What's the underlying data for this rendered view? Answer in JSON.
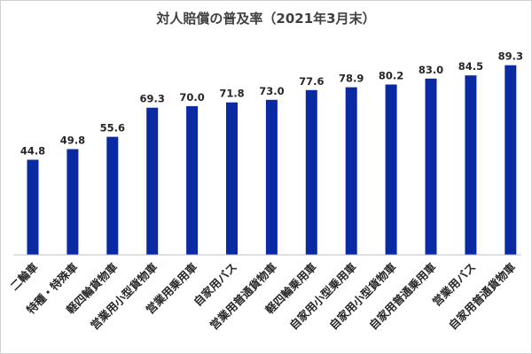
{
  "chart_data": {
    "type": "bar",
    "title": "対人賠償の普及率（2021年3月末）",
    "categories": [
      "二輪車",
      "特種・特殊車",
      "軽四輪貨物車",
      "営業用小型貨物車",
      "営業用乗用車",
      "自家用バス",
      "営業用普通貨物車",
      "軽四輪乗用車",
      "自家用小型乗用車",
      "自家用小型貨物車",
      "自家用普通乗用車",
      "営業用バス",
      "自家用普通貨物車"
    ],
    "values": [
      44.8,
      49.8,
      55.6,
      69.3,
      70.0,
      71.8,
      73.0,
      77.6,
      78.9,
      80.2,
      83.0,
      84.5,
      89.3
    ],
    "value_labels": [
      "44.8",
      "49.8",
      "55.6",
      "69.3",
      "70.0",
      "71.8",
      "73.0",
      "77.6",
      "78.9",
      "80.2",
      "83.0",
      "84.5",
      "89.3"
    ],
    "ylim": [
      0,
      100
    ],
    "grid": false,
    "legend": "none",
    "bar_color": "#0a2aa3"
  }
}
